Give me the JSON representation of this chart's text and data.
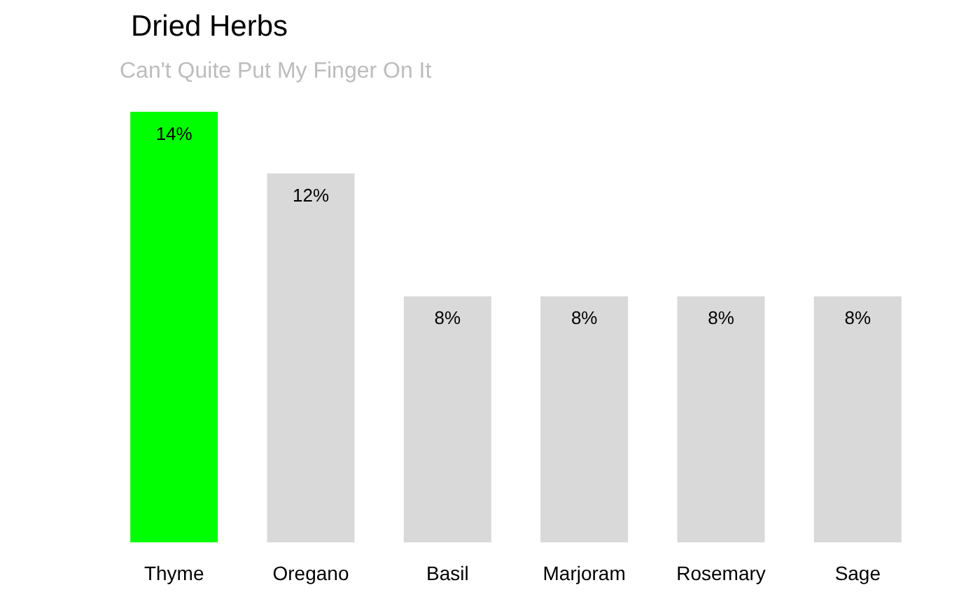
{
  "chart_data": {
    "type": "bar",
    "title": "Dried Herbs",
    "subtitle": "Can't Quite Put My Finger On It",
    "categories": [
      "Thyme",
      "Oregano",
      "Basil",
      "Marjoram",
      "Rosemary",
      "Sage"
    ],
    "values": [
      14,
      12,
      8,
      8,
      8,
      8
    ],
    "colors": [
      "#00ff00",
      "#d9d9d9",
      "#d9d9d9",
      "#d9d9d9",
      "#d9d9d9",
      "#d9d9d9"
    ],
    "value_labels": [
      "14%",
      "12%",
      "8%",
      "8%",
      "8%",
      "8%"
    ]
  }
}
